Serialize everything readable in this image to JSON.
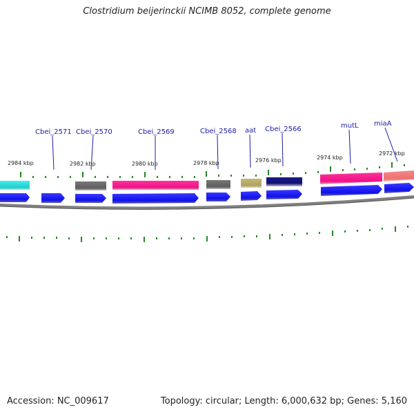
{
  "title": "Clostridium beijerinckii NCIMB 8052, complete genome",
  "footer": {
    "accession": "Accession: NC_009617",
    "topology": "Topology: circular; Length: 6,000,632 bp; Genes: 5,160"
  },
  "kbp_labels": [
    "2984 kbp",
    "2982 kbp",
    "2980 kbp",
    "2978 kbp",
    "2976 kbp",
    "2974 kbp",
    "2972 kbp"
  ],
  "gene_labels": [
    "Cbei_2571",
    "Cbei_2570",
    "Cbei_2569",
    "Cbei_2568",
    "aat",
    "Cbei_2566",
    "mutL",
    "miaA"
  ],
  "colors": {
    "gene_arrow": "#1010ee",
    "backbone": "#808080",
    "tick": "#228822",
    "label": "#1a1aa8",
    "cog_cyan": "#22dddd",
    "cog_gray": "#6a6a6a",
    "cog_pink": "#ee1188",
    "cog_khaki": "#b8aa66",
    "cog_navy": "#101070",
    "cog_salmon": "#ee7777"
  }
}
